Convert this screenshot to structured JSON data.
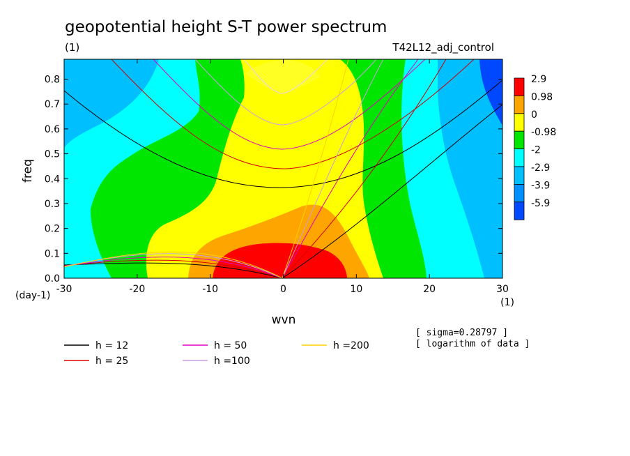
{
  "header": {
    "title": "geopotential height S-T power spectrum",
    "units": "(1)",
    "experiment": "T42L12_adj_control"
  },
  "chart_data": {
    "type": "heatmap",
    "title": "geopotential height S-T power spectrum",
    "xlabel": "wvn",
    "ylabel": "freq",
    "x_unit": "(1)",
    "y_unit": "(day-1)",
    "xlim": [
      -30,
      30
    ],
    "ylim": [
      0,
      0.88
    ],
    "x_ticks": [
      -30,
      -20,
      -10,
      0,
      10,
      20,
      30
    ],
    "y_ticks": [
      0.0,
      0.1,
      0.2,
      0.3,
      0.4,
      0.5,
      0.6,
      0.7,
      0.8
    ],
    "color_levels": [
      "2.9",
      "0.98",
      "0",
      "-0.98",
      "-2",
      "-2.9",
      "-3.9",
      "-5.9"
    ],
    "color_scale": [
      "#ff0000",
      "#ffa500",
      "#ffff00",
      "#00e600",
      "#00ffff",
      "#00bfff",
      "#0090ff",
      "#0048ff"
    ],
    "dispersion_curves": [
      {
        "name": "h = 12",
        "color": "#000000"
      },
      {
        "name": "h = 25",
        "color": "#e00000"
      },
      {
        "name": "h = 50",
        "color": "#e000c0"
      },
      {
        "name": "h =100",
        "color": "#c8a0e0"
      },
      {
        "name": "h =200",
        "color": "#ffd000"
      }
    ],
    "notes": [
      "[ sigma=0.28797 ]",
      "[ logarithm of data ]"
    ]
  }
}
